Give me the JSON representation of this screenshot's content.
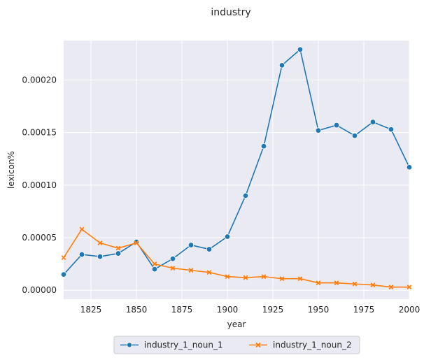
{
  "chart_data": {
    "type": "line",
    "title": "industry",
    "xlabel": "year",
    "ylabel": "lexicon%",
    "xlim": [
      1810,
      2000
    ],
    "ylim": [
      -8.5e-06,
      0.0002375
    ],
    "xticks": [
      "1825",
      "1850",
      "1875",
      "1900",
      "1925",
      "1950",
      "1975",
      "2000"
    ],
    "yticks": [
      "0.00000",
      "0.00005",
      "0.00010",
      "0.00015",
      "0.00020"
    ],
    "grid": true,
    "legend_position": "bottom-center",
    "x": [
      1810,
      1820,
      1830,
      1840,
      1850,
      1860,
      1870,
      1880,
      1890,
      1900,
      1910,
      1920,
      1930,
      1940,
      1950,
      1960,
      1970,
      1980,
      1990,
      2000
    ],
    "series": [
      {
        "name": "industry_1_noun_1",
        "color": "#1f77b4",
        "marker": "circle",
        "values": [
          1.5e-05,
          3.4e-05,
          3.2e-05,
          3.5e-05,
          4.6e-05,
          2e-05,
          3e-05,
          4.3e-05,
          3.9e-05,
          5.1e-05,
          9e-05,
          0.000137,
          0.000214,
          0.000229,
          0.000152,
          0.000157,
          0.000147,
          0.00016,
          0.000153,
          0.000117
        ]
      },
      {
        "name": "industry_1_noun_2",
        "color": "#ff7f0e",
        "marker": "x",
        "values": [
          3.1e-05,
          5.8e-05,
          4.5e-05,
          4e-05,
          4.5e-05,
          2.5e-05,
          2.1e-05,
          1.9e-05,
          1.7e-05,
          1.3e-05,
          1.2e-05,
          1.3e-05,
          1.1e-05,
          1.1e-05,
          7e-06,
          7e-06,
          6e-06,
          5e-06,
          3e-06,
          3e-06
        ]
      }
    ]
  }
}
